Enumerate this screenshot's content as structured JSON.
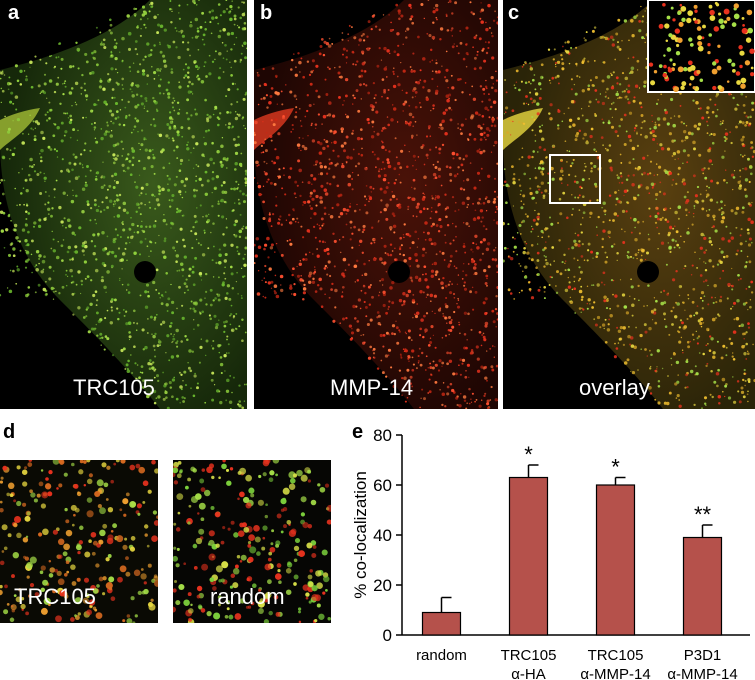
{
  "panels": {
    "a": {
      "letter": "a",
      "caption": "TRC105",
      "color": "#7cc83a"
    },
    "b": {
      "letter": "b",
      "caption": "MMP-14",
      "color": "#e8321e"
    },
    "c": {
      "letter": "c",
      "caption": "overlay"
    },
    "d": {
      "letter": "d",
      "left_caption": "TRC105",
      "right_caption": "random"
    },
    "e": {
      "letter": "e"
    }
  },
  "chart_data": {
    "type": "bar",
    "categories": [
      [
        "random"
      ],
      [
        "TRC105",
        "α-HA"
      ],
      [
        "TRC105",
        "α-MMP-14"
      ],
      [
        "P3D1",
        "α-MMP-14"
      ]
    ],
    "values": [
      9,
      63,
      60,
      39
    ],
    "errors": [
      6,
      5,
      3,
      5
    ],
    "significance": [
      "",
      "*",
      "*",
      "**"
    ],
    "ylabel": "% co-localization",
    "ylim": [
      0,
      80
    ],
    "yticks": [
      0,
      20,
      40,
      60,
      80
    ],
    "bar_color": "#b5514b"
  }
}
